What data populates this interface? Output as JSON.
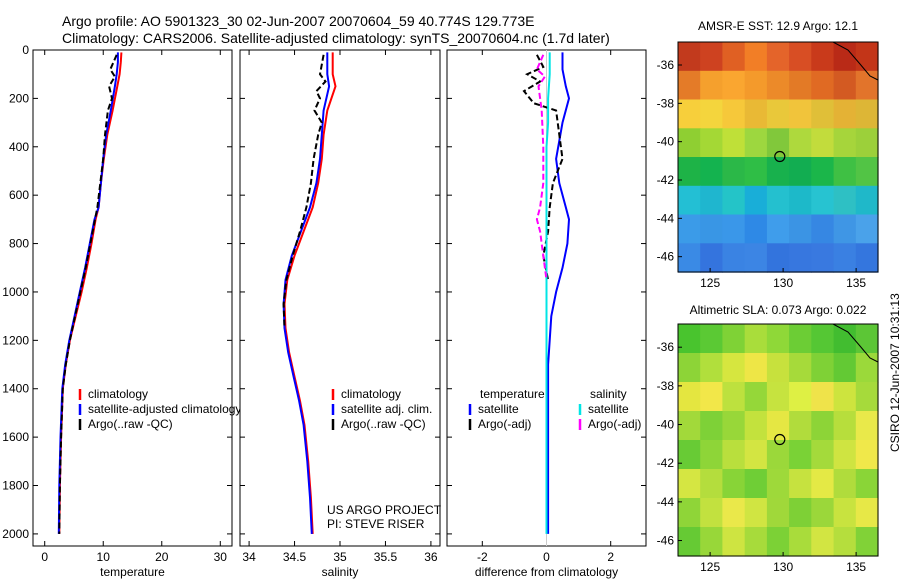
{
  "header": {
    "line1": "Argo profile: AO 5901323_30 02-Jun-2007 20070604_59 40.774S 129.773E",
    "line2": "Climatology: CARS2006. Satellite-adjusted climatology: synTS_20070604.nc (1.7d later)"
  },
  "side_text": "CSIRO 12-Jun-2007 10:31:13",
  "colors": {
    "climatology": "#ff0000",
    "satellite": "#0000ff",
    "argo": "#000000",
    "cyan": "#00e5e5",
    "magenta": "#ff00ff"
  },
  "chart_data": [
    {
      "type": "line",
      "xlabel": "temperature",
      "ylabel": "",
      "xlim": [
        -2,
        32
      ],
      "ylim": [
        2050,
        0
      ],
      "xticks": [
        0,
        10,
        20,
        30
      ],
      "yticks": [
        0,
        200,
        400,
        600,
        800,
        1000,
        1200,
        1400,
        1600,
        1800,
        2000
      ],
      "legend": [
        "climatology",
        "satellite-adjusted climatology",
        "Argo(..raw -QC)"
      ],
      "series": [
        {
          "name": "climatology",
          "color": "#ff0000",
          "dash": false,
          "x": [
            13.1,
            13.0,
            12.8,
            12.4,
            11.6,
            10.7,
            10.1,
            9.6,
            9.2,
            8.7,
            8.0,
            7.2,
            6.3,
            5.3,
            4.3,
            3.6,
            3.1,
            2.8,
            2.6,
            2.5
          ],
          "y": [
            10,
            50,
            100,
            150,
            250,
            350,
            450,
            550,
            650,
            700,
            800,
            900,
            1000,
            1100,
            1200,
            1300,
            1400,
            1600,
            1800,
            2000
          ]
        },
        {
          "name": "satellite-adjusted climatology",
          "color": "#0000ff",
          "dash": false,
          "x": [
            12.5,
            12.5,
            12.3,
            12.0,
            11.3,
            10.5,
            10.0,
            9.6,
            9.2,
            8.5,
            7.7,
            6.9,
            6.0,
            5.1,
            4.2,
            3.5,
            3.0,
            2.7,
            2.5,
            2.4
          ],
          "y": [
            10,
            50,
            100,
            150,
            250,
            350,
            450,
            550,
            650,
            700,
            800,
            900,
            1000,
            1100,
            1200,
            1300,
            1400,
            1600,
            1800,
            2000
          ]
        },
        {
          "name": "Argo(..raw -QC)",
          "color": "#000000",
          "dash": true,
          "x": [
            12.3,
            11.2,
            12.0,
            11.0,
            11.5,
            10.8,
            10.3,
            10.0,
            9.5,
            9.0,
            8.6,
            7.8,
            7.0,
            6.1,
            5.2,
            4.3,
            3.6,
            3.1,
            2.8,
            2.6,
            2.5
          ],
          "y": [
            20,
            80,
            110,
            150,
            200,
            250,
            350,
            450,
            550,
            650,
            700,
            800,
            900,
            1000,
            1100,
            1200,
            1300,
            1400,
            1600,
            1800,
            2000
          ]
        }
      ]
    },
    {
      "type": "line",
      "xlabel": "salinity",
      "xlim": [
        33.9,
        36.1
      ],
      "ylim": [
        2050,
        0
      ],
      "xticks": [
        34,
        34.5,
        35,
        35.5,
        36
      ],
      "legend": [
        "climatology",
        "satellite adj. clim.",
        "Argo(..raw -QC)"
      ],
      "annotation": [
        "US ARGO PROJECT",
        "PI: STEVE RISER"
      ],
      "series": [
        {
          "name": "climatology",
          "color": "#ff0000",
          "dash": false,
          "x": [
            34.92,
            34.92,
            34.95,
            34.86,
            34.82,
            34.8,
            34.76,
            34.7,
            34.6,
            34.5,
            34.42,
            34.39,
            34.4,
            34.44,
            34.5,
            34.56,
            34.61,
            34.65,
            34.68,
            34.7
          ],
          "y": [
            10,
            100,
            150,
            250,
            350,
            450,
            550,
            650,
            750,
            850,
            950,
            1050,
            1150,
            1250,
            1350,
            1450,
            1550,
            1700,
            1850,
            2000
          ]
        },
        {
          "name": "satellite adj. clim.",
          "color": "#0000ff",
          "dash": false,
          "x": [
            34.86,
            34.86,
            34.88,
            34.82,
            34.8,
            34.78,
            34.74,
            34.67,
            34.57,
            34.47,
            34.4,
            34.38,
            34.39,
            34.43,
            34.49,
            34.55,
            34.6,
            34.64,
            34.67,
            34.69
          ],
          "y": [
            10,
            100,
            150,
            250,
            350,
            450,
            550,
            650,
            750,
            850,
            950,
            1050,
            1150,
            1250,
            1350,
            1450,
            1550,
            1700,
            1850,
            2000
          ]
        },
        {
          "name": "Argo(..raw -QC)",
          "color": "#000000",
          "dash": true,
          "x": [
            34.82,
            34.78,
            34.84,
            34.74,
            34.78,
            34.72,
            34.8,
            34.76,
            34.71,
            34.68,
            34.63,
            34.56,
            34.48,
            34.41,
            34.38,
            34.39
          ],
          "y": [
            20,
            100,
            130,
            170,
            200,
            250,
            300,
            350,
            450,
            550,
            650,
            750,
            850,
            950,
            1050,
            1150
          ]
        }
      ]
    },
    {
      "type": "line",
      "xlabel": "difference from climatology",
      "xlim": [
        -3.1,
        3.1
      ],
      "ylim": [
        2050,
        0
      ],
      "xticks": [
        -2,
        0,
        2
      ],
      "legend": [
        "temperature",
        "satellite",
        "Argo(-adj)",
        "salinity",
        "satellite",
        "Argo(-adj)"
      ],
      "series": [
        {
          "name": "temperature satellite",
          "color": "#0000ff",
          "dash": false,
          "x": [
            0.5,
            0.5,
            0.6,
            0.7,
            0.5,
            0.3,
            0.4,
            0.6,
            0.7,
            0.65,
            0.5,
            0.3,
            0.15,
            0.1,
            0.05,
            0.05,
            0.05,
            0.05,
            0.05
          ],
          "y": [
            10,
            80,
            150,
            200,
            300,
            450,
            550,
            650,
            700,
            800,
            900,
            1000,
            1100,
            1200,
            1300,
            1500,
            1700,
            1850,
            2000
          ]
        },
        {
          "name": "temperature Argo(-adj)",
          "color": "#000000",
          "dash": true,
          "x": [
            -0.3,
            -0.1,
            -0.6,
            -0.2,
            -0.7,
            -0.4,
            0.3,
            0.4,
            0.5,
            0.2,
            0.1,
            0.05,
            -0.1,
            0.05
          ],
          "y": [
            20,
            70,
            100,
            130,
            170,
            220,
            250,
            350,
            450,
            550,
            650,
            750,
            850,
            950
          ]
        },
        {
          "name": "salinity satellite",
          "color": "#00e5e5",
          "dash": false,
          "x": [
            0.1,
            0.1,
            0.05,
            0.05,
            0.0,
            0.0,
            0.0,
            0.0,
            0.0,
            0.0,
            0.0,
            0.0,
            0.0,
            0.0
          ],
          "y": [
            10,
            100,
            200,
            300,
            400,
            500,
            600,
            800,
            1000,
            1200,
            1400,
            1600,
            1800,
            2000
          ]
        },
        {
          "name": "salinity Argo(-adj)",
          "color": "#ff00ff",
          "dash": true,
          "x": [
            -0.1,
            -0.3,
            -0.05,
            -0.25,
            -0.15,
            -0.1,
            -0.1,
            -0.2,
            -0.3,
            -0.2,
            -0.1,
            0.0
          ],
          "y": [
            20,
            80,
            110,
            150,
            250,
            400,
            550,
            650,
            700,
            750,
            850,
            950
          ]
        }
      ]
    },
    {
      "type": "heatmap",
      "title": "AMSR-E SST: 12.9 Argo: 12.1",
      "xlim": [
        122.8,
        136.5
      ],
      "ylim": [
        -46.8,
        -34.8
      ],
      "xticks": [
        125,
        130,
        135
      ],
      "yticks": [
        -36,
        -38,
        -40,
        -42,
        -44,
        -46
      ],
      "marker": [
        129.773,
        -40.774
      ],
      "rows_from_top": [
        [
          "#c23a1d",
          "#ce4220",
          "#e06023",
          "#f27e26",
          "#e4642a",
          "#d84e24",
          "#c93a1b",
          "#b92a17",
          "#c33518"
        ],
        [
          "#e47b28",
          "#f5a02d",
          "#faa630",
          "#f49a2b",
          "#ec8a29",
          "#e37a26",
          "#e06a23",
          "#d35a22",
          "#e2742b"
        ],
        [
          "#f7cf3b",
          "#f4d53d",
          "#f6c83a",
          "#e9b935",
          "#e9c83a",
          "#f1c43b",
          "#e0bf38",
          "#e4b235",
          "#ddb636"
        ],
        [
          "#8fcf32",
          "#a4d835",
          "#bfe038",
          "#9dd73f",
          "#81c83b",
          "#aed93d",
          "#c2dc3c",
          "#a6d53b",
          "#9cd03a"
        ],
        [
          "#1eb347",
          "#14b34f",
          "#2bb848",
          "#2fbe46",
          "#18b14d",
          "#12ad51",
          "#1bb64a",
          "#3fc044",
          "#52c445"
        ],
        [
          "#23bfd4",
          "#1fb6cf",
          "#24c4c8",
          "#19aed8",
          "#24c0cf",
          "#1db9c9",
          "#27c3d1",
          "#2ec0c4",
          "#1fb8c9"
        ],
        [
          "#3b9be8",
          "#3996e5",
          "#3a97e9",
          "#2e89e6",
          "#3f9deb",
          "#3b94e4",
          "#3687e3",
          "#3f96e5",
          "#4aa2ea"
        ],
        [
          "#3a8ae5",
          "#3474de",
          "#3a83e3",
          "#3c85e4",
          "#3374dd",
          "#3777df",
          "#3979e0",
          "#3a80e2",
          "#3476de"
        ]
      ]
    },
    {
      "type": "heatmap",
      "title": "Altimetric SLA: 0.073 Argo: 0.022",
      "xlim": [
        122.8,
        136.5
      ],
      "ylim": [
        -46.8,
        -34.8
      ],
      "xticks": [
        125,
        130,
        135
      ],
      "yticks": [
        -36,
        -38,
        -40,
        -42,
        -44,
        -46
      ],
      "marker": [
        129.773,
        -40.774
      ],
      "rows_from_top": [
        [
          "#49c42e",
          "#5bc934",
          "#7fd236",
          "#a9dd3b",
          "#8fd838",
          "#6ccd35",
          "#55c734",
          "#42bd30",
          "#5cc636"
        ],
        [
          "#8dd437",
          "#b1df3c",
          "#d6e63f",
          "#eee646",
          "#c7e13d",
          "#a6da3a",
          "#7fd136",
          "#63c934",
          "#9bd93a"
        ],
        [
          "#e4e640",
          "#f2e749",
          "#bde13e",
          "#95d739",
          "#c6e33f",
          "#def044",
          "#efe34a",
          "#cde43e",
          "#a6da3b"
        ],
        [
          "#a2d93a",
          "#7ed137",
          "#98d739",
          "#c3e23d",
          "#e5e743",
          "#b1dc3c",
          "#8dd437",
          "#b7de3c",
          "#e9e94a"
        ],
        [
          "#68cb35",
          "#8ed538",
          "#b9df3d",
          "#d3e542",
          "#9bd83a",
          "#7ad236",
          "#a4da3b",
          "#cfe441",
          "#f0e84a"
        ],
        [
          "#d5e642",
          "#b4dd3d",
          "#88d437",
          "#6fce36",
          "#9ed93a",
          "#c6e23f",
          "#e4e945",
          "#b0dc3c",
          "#8ad537"
        ],
        [
          "#8fd538",
          "#c2e13f",
          "#eae84a",
          "#d0e542",
          "#a0d83a",
          "#7ed036",
          "#9bd73a",
          "#c8e33f",
          "#e7e847"
        ],
        [
          "#66ca34",
          "#98d739",
          "#cee441",
          "#a7db3b",
          "#7cd136",
          "#a9dc3b",
          "#d2e542",
          "#b5de3d",
          "#81d237"
        ]
      ]
    }
  ]
}
